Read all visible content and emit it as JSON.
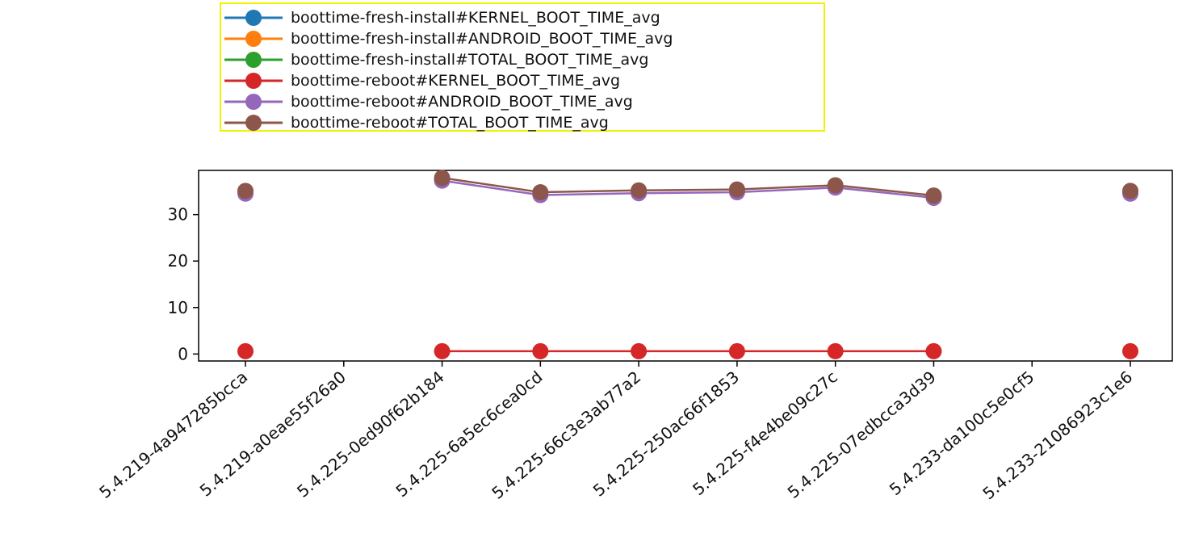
{
  "chart_data": {
    "type": "line",
    "categories": [
      "5.4.219-4a947285bcca",
      "5.4.219-a0eae55f26a0",
      "5.4.225-0ed90f62b184",
      "5.4.225-6a5ec6cea0cd",
      "5.4.225-66c3e3ab77a2",
      "5.4.225-250ac66f1853",
      "5.4.225-f4e4be09c27c",
      "5.4.225-07edbcca3d39",
      "5.4.233-da100c5e0cf5",
      "5.4.233-21086923c1e6"
    ],
    "series": [
      {
        "name": "boottime-fresh-install#KERNEL_BOOT_TIME_avg",
        "color": "#1f77b4",
        "values": [
          null,
          null,
          null,
          null,
          null,
          null,
          null,
          null,
          null,
          null
        ]
      },
      {
        "name": "boottime-fresh-install#ANDROID_BOOT_TIME_avg",
        "color": "#ff7f0e",
        "values": [
          null,
          null,
          null,
          null,
          null,
          null,
          null,
          null,
          null,
          null
        ]
      },
      {
        "name": "boottime-fresh-install#TOTAL_BOOT_TIME_avg",
        "color": "#2ca02c",
        "values": [
          null,
          null,
          null,
          null,
          null,
          null,
          null,
          null,
          null,
          null
        ]
      },
      {
        "name": "boottime-reboot#KERNEL_BOOT_TIME_avg",
        "color": "#d62728",
        "values": [
          0.6,
          null,
          0.6,
          0.6,
          0.6,
          0.6,
          0.6,
          0.6,
          null,
          0.6
        ]
      },
      {
        "name": "boottime-reboot#ANDROID_BOOT_TIME_avg",
        "color": "#9467bd",
        "values": [
          34.5,
          null,
          37.3,
          34.2,
          34.6,
          34.8,
          35.8,
          33.6,
          null,
          34.5
        ]
      },
      {
        "name": "boottime-reboot#TOTAL_BOOT_TIME_avg",
        "color": "#8c564b",
        "values": [
          35.1,
          null,
          37.9,
          34.8,
          35.2,
          35.4,
          36.3,
          34.1,
          null,
          35.1
        ]
      }
    ],
    "y_ticks": [
      "0",
      "10",
      "20",
      "30"
    ],
    "ylim": [
      -1.5,
      39.5
    ],
    "legend_location": "upper-center-above",
    "legend_edge_color": "#f2f200",
    "grid": false
  }
}
